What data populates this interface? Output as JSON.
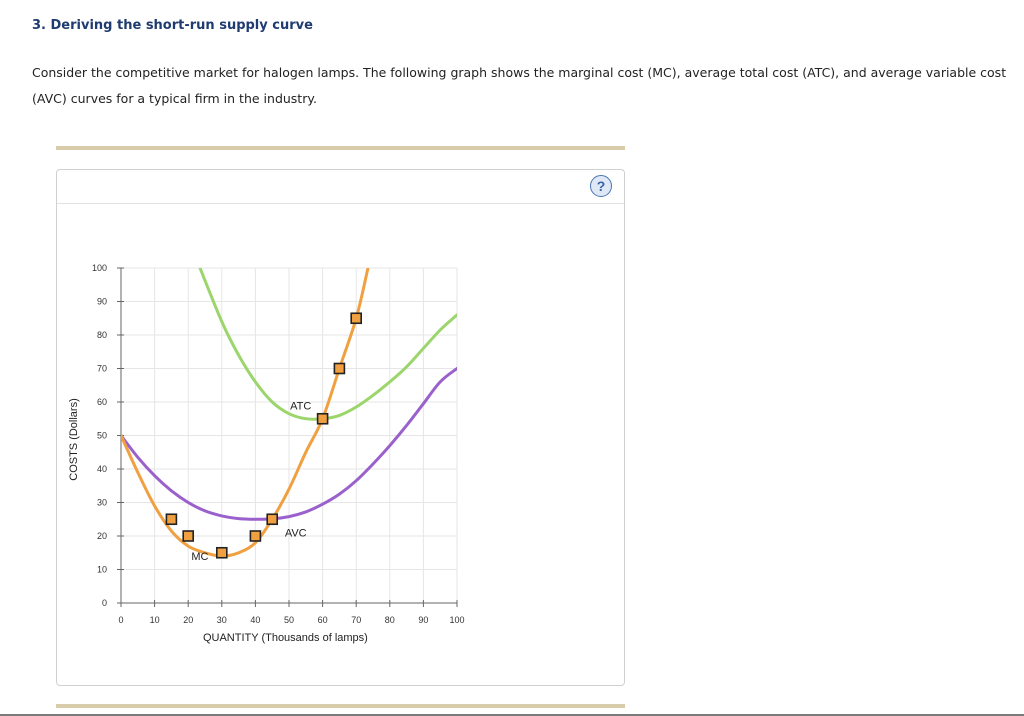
{
  "question": {
    "heading": "3. Deriving the short-run supply curve",
    "intro": "Consider the competitive market for halogen lamps. The following graph shows the marginal cost (MC), average total cost (ATC), and average variable cost (AVC) curves for a typical firm in the industry."
  },
  "help_button": {
    "label": "?"
  },
  "colors": {
    "mc": "#f0a040",
    "atc": "#9bd56c",
    "avc": "#9a60cc",
    "marker_fill": "#f0a040",
    "marker_stroke": "#222222",
    "grid": "#e6e6e6"
  },
  "chart_data": {
    "type": "line",
    "xlabel": "QUANTITY (Thousands of lamps)",
    "ylabel": "COSTS (Dollars)",
    "xlim": [
      0,
      100
    ],
    "ylim": [
      0,
      100
    ],
    "x_ticks": [
      0,
      10,
      20,
      30,
      40,
      50,
      60,
      70,
      80,
      90,
      100
    ],
    "y_ticks": [
      0,
      10,
      20,
      30,
      40,
      50,
      60,
      70,
      80,
      90,
      100
    ],
    "grid": true,
    "series": [
      {
        "name": "MC",
        "color": "#f0a040",
        "points": [
          [
            0,
            50
          ],
          [
            5,
            39
          ],
          [
            10,
            29
          ],
          [
            15,
            21.5
          ],
          [
            20,
            17
          ],
          [
            25,
            15
          ],
          [
            30,
            14
          ],
          [
            35,
            15
          ],
          [
            40,
            18
          ],
          [
            45,
            25
          ],
          [
            50,
            34
          ],
          [
            55,
            45
          ],
          [
            60,
            55
          ],
          [
            65,
            70
          ],
          [
            70,
            85
          ],
          [
            73.5,
            100
          ]
        ],
        "markers": [
          [
            15,
            25
          ],
          [
            20,
            20
          ],
          [
            30,
            15
          ],
          [
            40,
            20
          ],
          [
            45,
            25
          ],
          [
            60,
            55
          ],
          [
            65,
            70
          ],
          [
            70,
            85
          ]
        ]
      },
      {
        "name": "ATC",
        "color": "#9bd56c",
        "points": [
          [
            23.5,
            100
          ],
          [
            30,
            84
          ],
          [
            35,
            74
          ],
          [
            40,
            66
          ],
          [
            45,
            60
          ],
          [
            50,
            56.5
          ],
          [
            55,
            55
          ],
          [
            60,
            55
          ],
          [
            65,
            56
          ],
          [
            70,
            58.5
          ],
          [
            75,
            62
          ],
          [
            80,
            66
          ],
          [
            85,
            70.5
          ],
          [
            90,
            76
          ],
          [
            95,
            81.5
          ],
          [
            100,
            86
          ]
        ]
      },
      {
        "name": "AVC",
        "color": "#9a60cc",
        "points": [
          [
            0,
            50
          ],
          [
            5,
            43.5
          ],
          [
            10,
            38
          ],
          [
            15,
            33.5
          ],
          [
            20,
            30
          ],
          [
            25,
            27.5
          ],
          [
            30,
            26
          ],
          [
            35,
            25.2
          ],
          [
            40,
            25
          ],
          [
            45,
            25.1
          ],
          [
            50,
            25.8
          ],
          [
            55,
            27.2
          ],
          [
            60,
            29.5
          ],
          [
            65,
            32.5
          ],
          [
            70,
            36.5
          ],
          [
            75,
            41.5
          ],
          [
            80,
            47
          ],
          [
            85,
            53
          ],
          [
            90,
            59.5
          ],
          [
            95,
            66
          ],
          [
            100,
            70
          ]
        ]
      }
    ],
    "curve_labels": [
      {
        "text": "ATC",
        "x": 53.5,
        "y": 59
      },
      {
        "text": "AVC",
        "x": 52,
        "y": 21
      },
      {
        "text": "MC",
        "x": 23.5,
        "y": 14
      }
    ]
  }
}
